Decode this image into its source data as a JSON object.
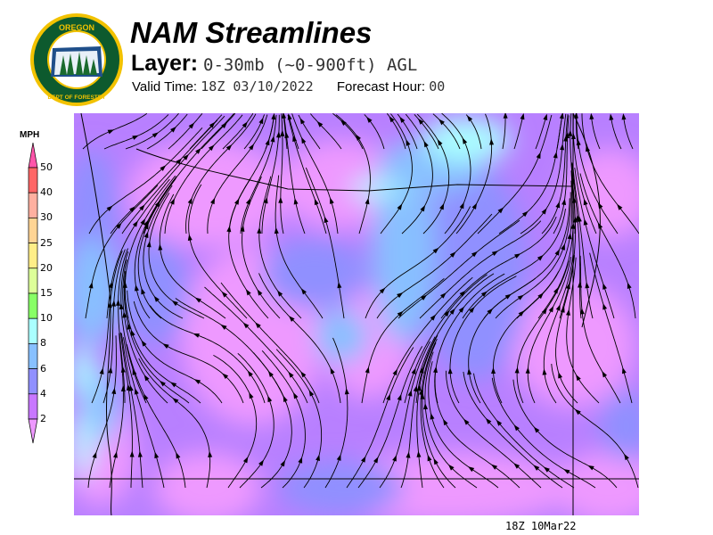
{
  "header": {
    "title": "NAM Streamlines",
    "layer_label": "Layer:",
    "layer_value": "0-30mb (~0-900ft) AGL",
    "valid_label": "Valid Time:",
    "valid_value": "18Z 03/10/2022",
    "forecast_label": "Forecast Hour:",
    "forecast_value": "00"
  },
  "logo": {
    "text_top": "OREGON",
    "text_bottom": "DEPARTMENT OF FORESTRY"
  },
  "legend": {
    "unit": "MPH",
    "bins": [
      {
        "label": "50",
        "color": "#ff6666"
      },
      {
        "label": "40",
        "color": "#ffb0a0"
      },
      {
        "label": "30",
        "color": "#ffd494"
      },
      {
        "label": "25",
        "color": "#ffee88"
      },
      {
        "label": "20",
        "color": "#ddff99"
      },
      {
        "label": "15",
        "color": "#88ff66"
      },
      {
        "label": "10",
        "color": "#aaffff"
      },
      {
        "label": "8",
        "color": "#88c0ff"
      },
      {
        "label": "6",
        "color": "#9090ff"
      },
      {
        "label": "4",
        "color": "#c877ff"
      },
      {
        "label": "2",
        "color": "#ee99ff"
      }
    ],
    "over_color": "#ff55aa"
  },
  "footer": {
    "timestamp": "18Z 10Mar22"
  }
}
